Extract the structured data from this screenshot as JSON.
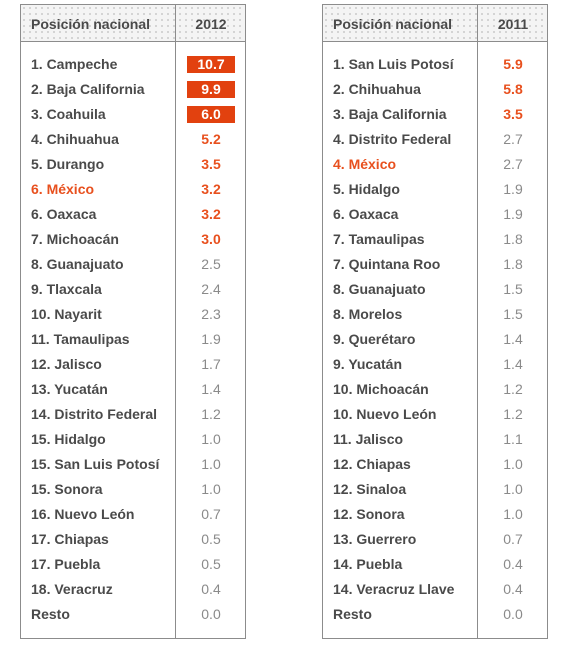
{
  "highlight_color": "#e8501e",
  "tables": [
    {
      "header_label": "Posición nacional",
      "header_year": "2012",
      "rows": [
        {
          "name": "1. Campeche",
          "value": "10.7",
          "style": "box",
          "highlight": false
        },
        {
          "name": "2. Baja California",
          "value": "9.9",
          "style": "box",
          "highlight": false
        },
        {
          "name": "3. Coahuila",
          "value": "6.0",
          "style": "box",
          "highlight": false
        },
        {
          "name": "4. Chihuahua",
          "value": "5.2",
          "style": "bold",
          "highlight": false
        },
        {
          "name": "5. Durango",
          "value": "3.5",
          "style": "bold",
          "highlight": false
        },
        {
          "name": "6. México",
          "value": "3.2",
          "style": "bold",
          "highlight": true
        },
        {
          "name": "6. Oaxaca",
          "value": "3.2",
          "style": "bold",
          "highlight": false
        },
        {
          "name": "7. Michoacán",
          "value": "3.0",
          "style": "bold",
          "highlight": false
        },
        {
          "name": "8. Guanajuato",
          "value": "2.5",
          "style": "normal",
          "highlight": false
        },
        {
          "name": "9. Tlaxcala",
          "value": "2.4",
          "style": "normal",
          "highlight": false
        },
        {
          "name": "10. Nayarit",
          "value": "2.3",
          "style": "normal",
          "highlight": false
        },
        {
          "name": "11. Tamaulipas",
          "value": "1.9",
          "style": "normal",
          "highlight": false
        },
        {
          "name": "12. Jalisco",
          "value": "1.7",
          "style": "normal",
          "highlight": false
        },
        {
          "name": "13. Yucatán",
          "value": "1.4",
          "style": "normal",
          "highlight": false
        },
        {
          "name": "14. Distrito Federal",
          "value": "1.2",
          "style": "normal",
          "highlight": false
        },
        {
          "name": "15. Hidalgo",
          "value": "1.0",
          "style": "normal",
          "highlight": false
        },
        {
          "name": "15. San Luis Potosí",
          "value": "1.0",
          "style": "normal",
          "highlight": false
        },
        {
          "name": "15. Sonora",
          "value": "1.0",
          "style": "normal",
          "highlight": false
        },
        {
          "name": "16. Nuevo León",
          "value": "0.7",
          "style": "normal",
          "highlight": false
        },
        {
          "name": "17. Chiapas",
          "value": "0.5",
          "style": "normal",
          "highlight": false
        },
        {
          "name": "17. Puebla",
          "value": "0.5",
          "style": "normal",
          "highlight": false
        },
        {
          "name": "18. Veracruz",
          "value": "0.4",
          "style": "normal",
          "highlight": false
        },
        {
          "name": "Resto",
          "value": "0.0",
          "style": "normal",
          "highlight": false
        }
      ]
    },
    {
      "header_label": "Posición nacional",
      "header_year": "2011",
      "rows": [
        {
          "name": "1. San Luis Potosí",
          "value": "5.9",
          "style": "bold",
          "highlight": false
        },
        {
          "name": "2. Chihuahua",
          "value": "5.8",
          "style": "bold",
          "highlight": false
        },
        {
          "name": "3. Baja California",
          "value": "3.5",
          "style": "bold",
          "highlight": false
        },
        {
          "name": "4. Distrito Federal",
          "value": "2.7",
          "style": "normal",
          "highlight": false
        },
        {
          "name": "4. México",
          "value": "2.7",
          "style": "normal",
          "highlight": true
        },
        {
          "name": "5. Hidalgo",
          "value": "1.9",
          "style": "normal",
          "highlight": false
        },
        {
          "name": "6. Oaxaca",
          "value": "1.9",
          "style": "normal",
          "highlight": false
        },
        {
          "name": "7. Tamaulipas",
          "value": "1.8",
          "style": "normal",
          "highlight": false
        },
        {
          "name": "7. Quintana Roo",
          "value": "1.8",
          "style": "normal",
          "highlight": false
        },
        {
          "name": "8. Guanajuato",
          "value": "1.5",
          "style": "normal",
          "highlight": false
        },
        {
          "name": "8. Morelos",
          "value": "1.5",
          "style": "normal",
          "highlight": false
        },
        {
          "name": "9. Querétaro",
          "value": "1.4",
          "style": "normal",
          "highlight": false
        },
        {
          "name": "9. Yucatán",
          "value": "1.4",
          "style": "normal",
          "highlight": false
        },
        {
          "name": "10. Michoacán",
          "value": "1.2",
          "style": "normal",
          "highlight": false
        },
        {
          "name": "10. Nuevo León",
          "value": "1.2",
          "style": "normal",
          "highlight": false
        },
        {
          "name": "11. Jalisco",
          "value": "1.1",
          "style": "normal",
          "highlight": false
        },
        {
          "name": "12. Chiapas",
          "value": "1.0",
          "style": "normal",
          "highlight": false
        },
        {
          "name": "12. Sinaloa",
          "value": "1.0",
          "style": "normal",
          "highlight": false
        },
        {
          "name": "12. Sonora",
          "value": "1.0",
          "style": "normal",
          "highlight": false
        },
        {
          "name": "13. Guerrero",
          "value": "0.7",
          "style": "normal",
          "highlight": false
        },
        {
          "name": "14. Puebla",
          "value": "0.4",
          "style": "normal",
          "highlight": false
        },
        {
          "name": "14. Veracruz Llave",
          "value": "0.4",
          "style": "normal",
          "highlight": false
        },
        {
          "name": "Resto",
          "value": "0.0",
          "style": "normal",
          "highlight": false
        }
      ]
    }
  ]
}
